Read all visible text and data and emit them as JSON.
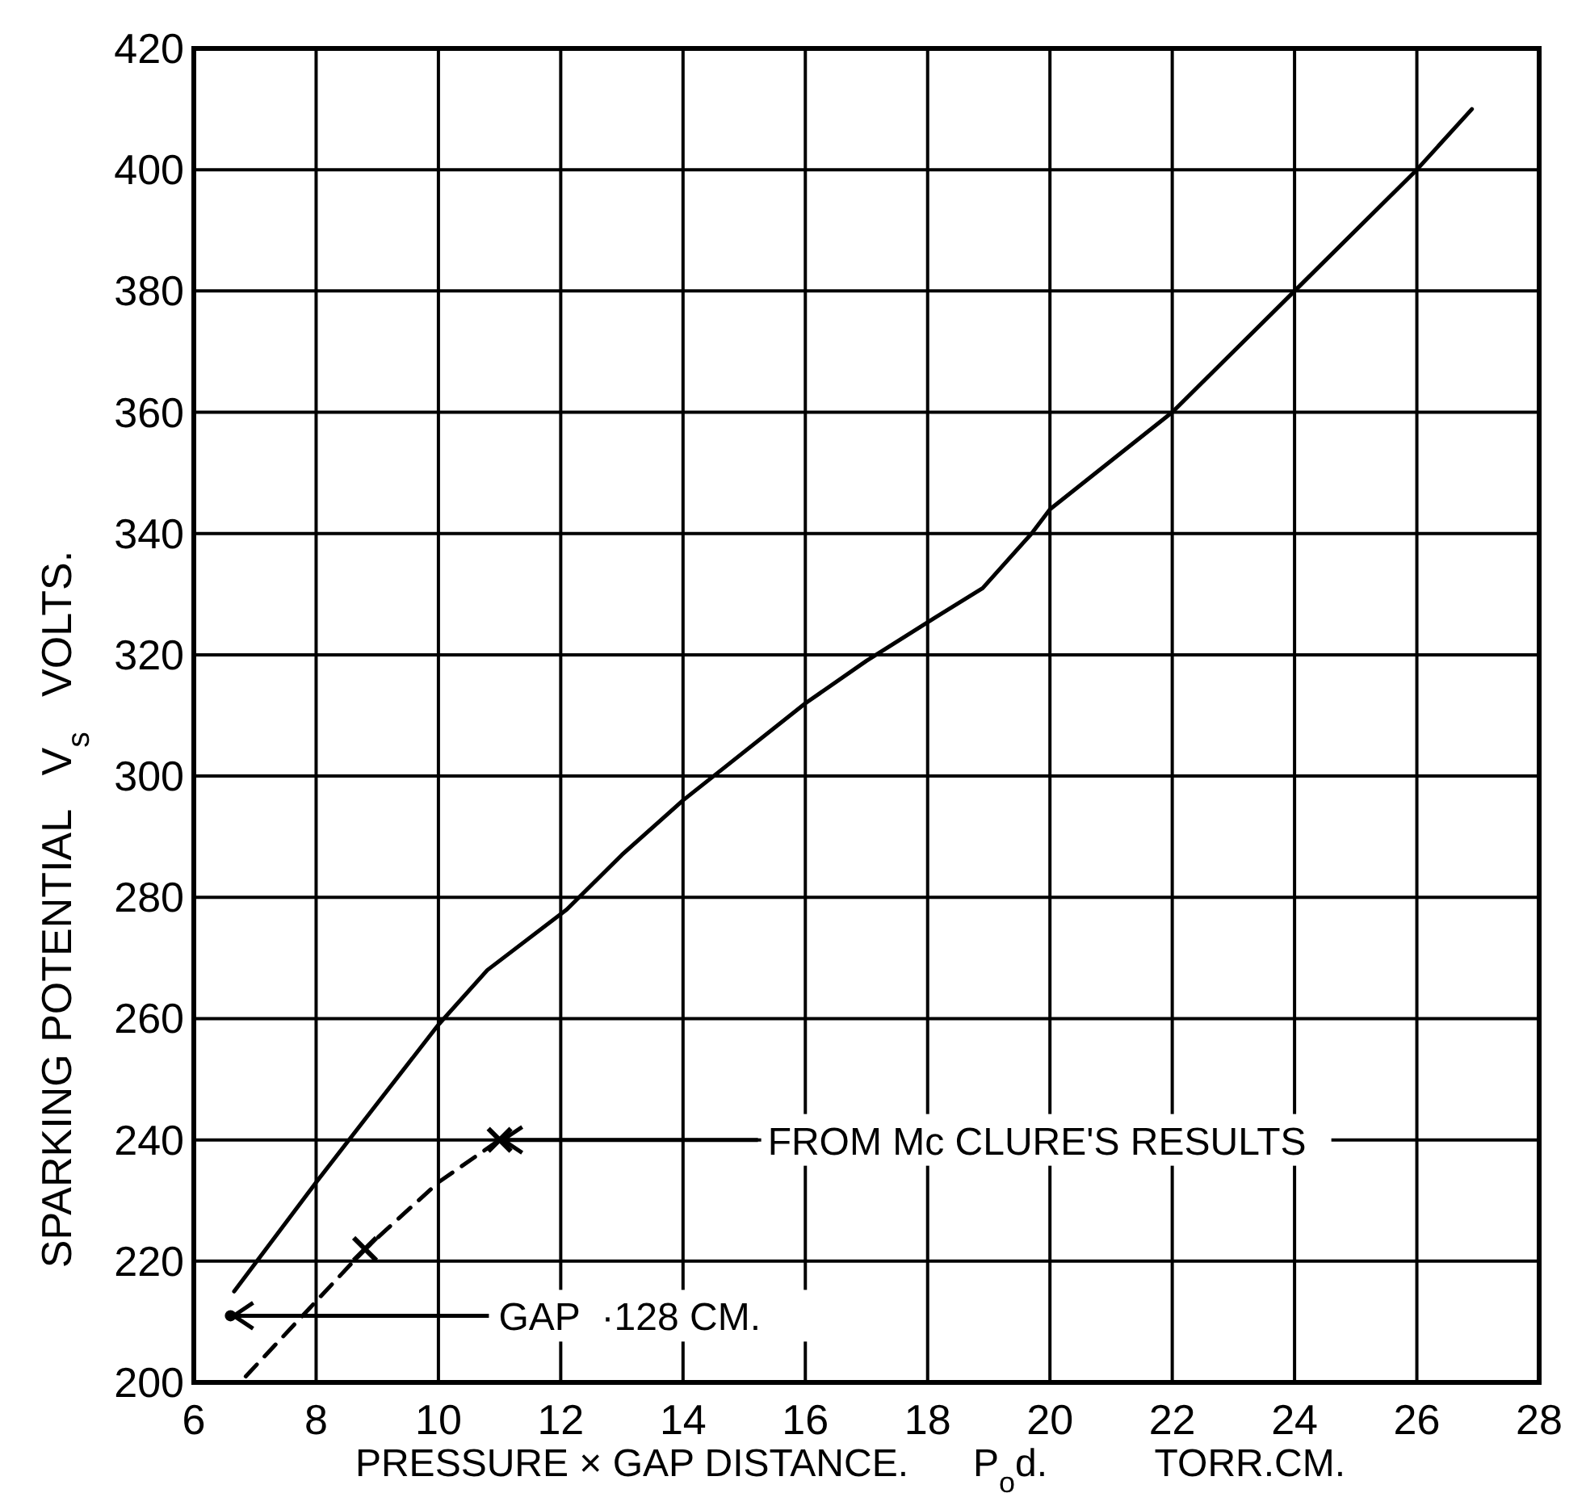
{
  "chart_data": {
    "type": "line",
    "xlabel": "PRESSURE × GAP DISTANCE.      P$_{o}$d.          TORR.CM.",
    "ylabel": "SPARKING POTENTIAL   V$_{s}$   VOLTS.",
    "xlim": [
      6,
      28
    ],
    "xticks": [
      6,
      8,
      10,
      12,
      14,
      16,
      18,
      20,
      22,
      24,
      26,
      28
    ],
    "ylim": [
      200,
      420
    ],
    "yticks": [
      200,
      220,
      240,
      260,
      280,
      300,
      320,
      340,
      360,
      380,
      400,
      420
    ],
    "grid": true,
    "series": [
      {
        "type": "line",
        "color": "#000000",
        "line_style": "solid",
        "marker": "none",
        "x": [
          6.66,
          8,
          9,
          10,
          10.8,
          12.1,
          13,
          14,
          14.5,
          16,
          17,
          18.1,
          18.9,
          19.7,
          20,
          22,
          24,
          26,
          26.9
        ],
        "values": [
          215,
          233,
          246,
          259,
          268,
          278,
          287,
          296,
          300,
          312,
          319,
          326,
          331,
          340,
          344,
          360,
          380,
          400,
          410
        ]
      },
      {
        "type": "line",
        "color": "#000000",
        "line_style": "dashed",
        "marker": "none",
        "x": [
          6.85,
          8.8,
          10,
          11
        ],
        "values": [
          201,
          222,
          233,
          240
        ]
      },
      {
        "type": "scatter",
        "color": "#000000",
        "marker": "cross",
        "x": [
          8.8,
          11
        ],
        "values": [
          222,
          240
        ]
      },
      {
        "type": "scatter",
        "color": "#000000",
        "marker": "circle",
        "x": [
          6.6
        ],
        "values": [
          211
        ]
      }
    ],
    "annotations": [
      {
        "text": "FROM Mc CLURE'S RESULTS",
        "x": 11,
        "y": 240
      },
      {
        "text": "GAP  ·128 CM.",
        "x": 6.6,
        "y": 211
      }
    ]
  }
}
